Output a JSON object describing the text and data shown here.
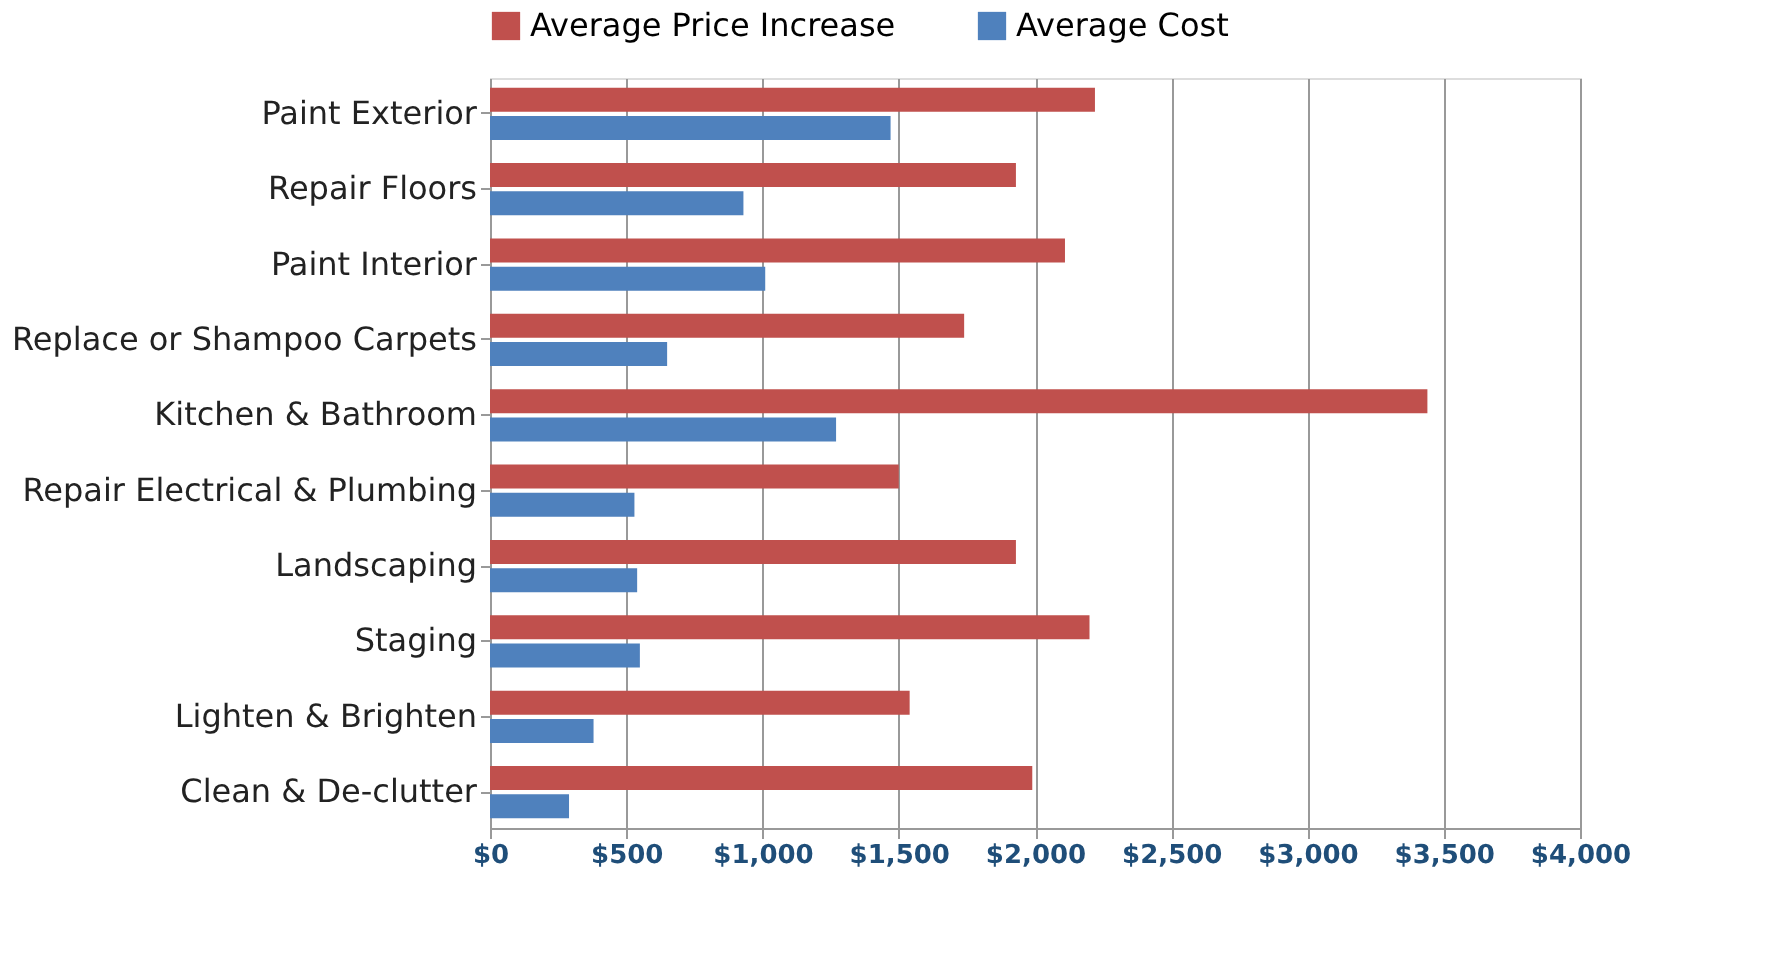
{
  "chart_data": {
    "type": "bar",
    "orientation": "horizontal",
    "categories": [
      "Paint Exterior",
      "Repair Floors",
      "Paint Interior",
      "Replace or Shampoo Carpets",
      "Kitchen & Bathroom",
      "Repair Electrical & Plumbing",
      "Landscaping",
      "Staging",
      "Lighten & Brighten",
      "Clean & De-clutter"
    ],
    "series": [
      {
        "name": "Average Price Increase",
        "color": "#c0504d",
        "values": [
          2220,
          1930,
          2110,
          1740,
          3440,
          1500,
          1930,
          2200,
          1540,
          1990
        ]
      },
      {
        "name": "Average Cost",
        "color": "#4f81bd",
        "values": [
          1470,
          930,
          1010,
          650,
          1270,
          530,
          540,
          550,
          380,
          290
        ]
      }
    ],
    "xlim": [
      0,
      4000
    ],
    "xticks": [
      {
        "value": 0,
        "label": "$0"
      },
      {
        "value": 500,
        "label": "$500"
      },
      {
        "value": 1000,
        "label": "$1,000"
      },
      {
        "value": 1500,
        "label": "$1,500"
      },
      {
        "value": 2000,
        "label": "$2,000"
      },
      {
        "value": 2500,
        "label": "$2,500"
      },
      {
        "value": 3000,
        "label": "$3,000"
      },
      {
        "value": 3500,
        "label": "$3,500"
      },
      {
        "value": 4000,
        "label": "$4,000"
      }
    ],
    "grid": "x",
    "legend": "top"
  }
}
